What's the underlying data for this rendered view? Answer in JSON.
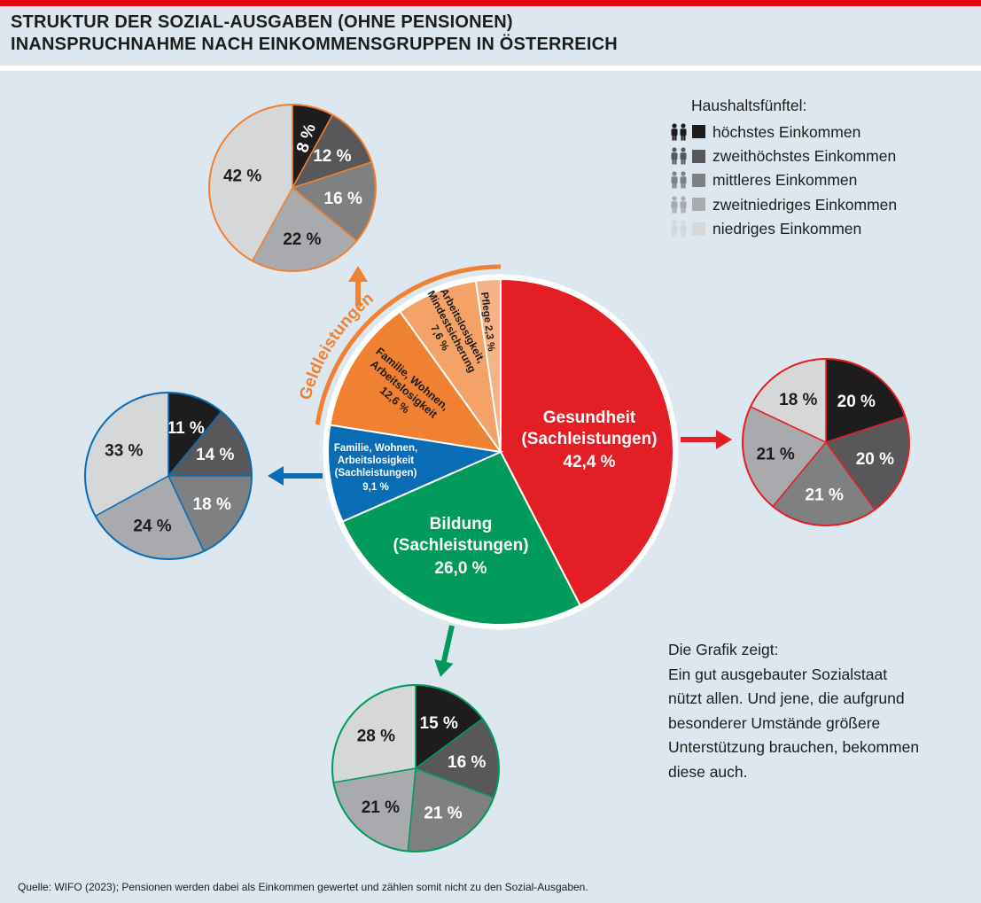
{
  "title": {
    "line1": "STRUKTUR DER SOZIAL-AUSGABEN (OHNE PENSIONEN)",
    "line2": "INANSPRUCHNAHME NACH EINKOMMENSGRUPPEN IN ÖSTERREICH"
  },
  "legend": {
    "title": "Haushaltsfünftel:",
    "items": [
      {
        "label": "höchstes Einkommen",
        "color": "#1e1c1d"
      },
      {
        "label": "zweithöchstes Einkommen",
        "color": "#58585a"
      },
      {
        "label": "mittleres Einkommen",
        "color": "#7f8082"
      },
      {
        "label": "zweitniedriges Einkommen",
        "color": "#a9aaad"
      },
      {
        "label": "niedriges Einkommen",
        "color": "#d6d7d9"
      }
    ]
  },
  "info": {
    "lines": [
      "Die Grafik zeigt:",
      "Ein gut ausgebauter Sozialstaat",
      "nützt allen. Und jene, die aufgrund",
      "besonderer Umstände größere",
      "Unterstützung brauchen, bekommen",
      "diese auch."
    ]
  },
  "source": "Quelle: WIFO (2023); Pensionen werden dabei als Einkommen gewertet und zählen somit nicht zu den Sozial-Ausgaben.",
  "colors": {
    "gesundheit": "#e31e24",
    "bildung": "#009a5b",
    "familie_sach": "#0a6cb4",
    "geld1": "#f08132",
    "geld2": "#f4a268",
    "geld3": "#f5b387"
  },
  "chart_data": [
    {
      "type": "pie",
      "title": "",
      "group_label": "Geldleistungen",
      "slices": [
        {
          "label": "Gesundheit (Sachleistungen)",
          "value": 42.4,
          "value_label": "42,4 %",
          "color": "#e31e24"
        },
        {
          "label": "Bildung (Sachleistungen)",
          "value": 26.0,
          "value_label": "26,0 %",
          "color": "#009a5b"
        },
        {
          "label": "Familie, Wohnen, Arbeitslosigkeit (Sachleistungen)",
          "value": 9.1,
          "value_label": "9,1 %",
          "color": "#0a6cb4"
        },
        {
          "label": "Familie, Wohnen, Arbeitslosigkeit",
          "value": 12.6,
          "value_label": "12,6 %",
          "color": "#f08132",
          "group": "Geldleistungen"
        },
        {
          "label": "Arbeitslosigkeit, Mindestsicherung",
          "value": 7.6,
          "value_label": "7,6 %",
          "color": "#f4a268",
          "group": "Geldleistungen"
        },
        {
          "label": "Pflege",
          "value": 2.3,
          "value_label": "2,3 %",
          "color": "#f5b387",
          "group": "Geldleistungen"
        }
      ]
    },
    {
      "type": "pie",
      "category": "Geldleistungen",
      "series": [
        {
          "name": "höchstes Einkommen",
          "value": 8,
          "value_label": "8 %"
        },
        {
          "name": "zweithöchstes Einkommen",
          "value": 12,
          "value_label": "12 %"
        },
        {
          "name": "mittleres Einkommen",
          "value": 16,
          "value_label": "16 %"
        },
        {
          "name": "zweitniedriges Einkommen",
          "value": 22,
          "value_label": "22 %"
        },
        {
          "name": "niedriges Einkommen",
          "value": 42,
          "value_label": "42 %"
        }
      ]
    },
    {
      "type": "pie",
      "category": "Gesundheit (Sachleistungen)",
      "series": [
        {
          "name": "höchstes Einkommen",
          "value": 20,
          "value_label": "20 %"
        },
        {
          "name": "zweithöchstes Einkommen",
          "value": 20,
          "value_label": "20 %"
        },
        {
          "name": "mittleres Einkommen",
          "value": 21,
          "value_label": "21 %"
        },
        {
          "name": "zweitniedriges Einkommen",
          "value": 21,
          "value_label": "21 %"
        },
        {
          "name": "niedriges Einkommen",
          "value": 18,
          "value_label": "18 %"
        }
      ]
    },
    {
      "type": "pie",
      "category": "Familie, Wohnen, Arbeitslosigkeit (Sachleistungen)",
      "series": [
        {
          "name": "höchstes Einkommen",
          "value": 11,
          "value_label": "11 %"
        },
        {
          "name": "zweithöchstes Einkommen",
          "value": 14,
          "value_label": "14 %"
        },
        {
          "name": "mittleres Einkommen",
          "value": 18,
          "value_label": "18 %"
        },
        {
          "name": "zweitniedriges Einkommen",
          "value": 24,
          "value_label": "24 %"
        },
        {
          "name": "niedriges Einkommen",
          "value": 33,
          "value_label": "33 %"
        }
      ]
    },
    {
      "type": "pie",
      "category": "Bildung (Sachleistungen)",
      "series": [
        {
          "name": "höchstes Einkommen",
          "value": 15,
          "value_label": "15 %"
        },
        {
          "name": "zweithöchstes Einkommen",
          "value": 16,
          "value_label": "16 %"
        },
        {
          "name": "mittleres Einkommen",
          "value": 21,
          "value_label": "21 %"
        },
        {
          "name": "zweitniedriges Einkommen",
          "value": 21,
          "value_label": "21 %"
        },
        {
          "name": "niedriges Einkommen",
          "value": 28,
          "value_label": "28 %"
        }
      ]
    }
  ]
}
